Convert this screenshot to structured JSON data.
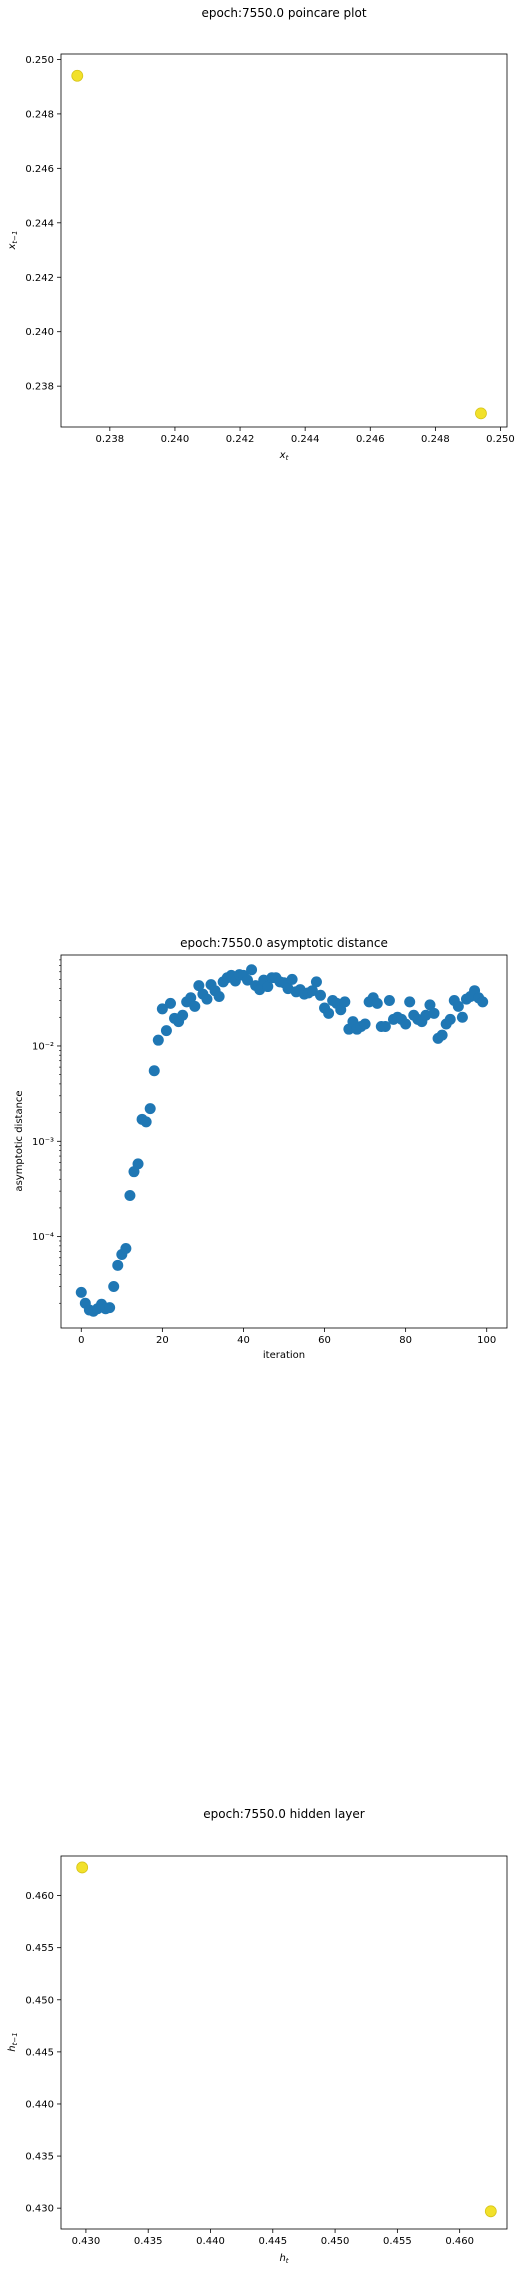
{
  "chart_data": [
    {
      "type": "scatter",
      "title": "epoch:7550.0 poincare plot",
      "xlabel": "x_t",
      "ylabel": "x_{t-1}",
      "xlim": [
        0.2365,
        0.2502
      ],
      "ylim": [
        0.2365,
        0.2502
      ],
      "yscale": "linear",
      "xticks": [
        0.238,
        0.24,
        0.242,
        0.244,
        0.246,
        0.248,
        0.25
      ],
      "xtick_labels": [
        "0.238",
        "0.240",
        "0.242",
        "0.244",
        "0.246",
        "0.248",
        "0.250"
      ],
      "yticks": [
        0.238,
        0.24,
        0.242,
        0.244,
        0.246,
        0.248,
        0.25
      ],
      "ytick_labels": [
        "0.238",
        "0.240",
        "0.242",
        "0.244",
        "0.246",
        "0.248",
        "0.250"
      ],
      "color": "#f2e12a",
      "points": [
        {
          "x": 0.237,
          "y": 0.2494
        },
        {
          "x": 0.2494,
          "y": 0.237
        }
      ]
    },
    {
      "type": "scatter",
      "title": "epoch:7550.0 asymptotic distance",
      "xlabel": "iteration",
      "ylabel": "asymptotic distance",
      "xlim": [
        -5,
        105
      ],
      "ylim": [
        1.1e-05,
        0.09
      ],
      "yscale": "log",
      "xticks": [
        0,
        20,
        40,
        60,
        80,
        100
      ],
      "xtick_labels": [
        "0",
        "20",
        "40",
        "60",
        "80",
        "100"
      ],
      "yticks": [
        0.0001,
        0.001,
        0.01
      ],
      "ytick_labels": [
        "10⁻⁴",
        "10⁻³",
        "10⁻²"
      ],
      "color": "#1f77b4",
      "x": [
        0,
        1,
        2,
        3,
        4,
        5,
        6,
        7,
        8,
        9,
        10,
        11,
        12,
        13,
        14,
        15,
        16,
        17,
        18,
        19,
        20,
        21,
        22,
        23,
        24,
        25,
        26,
        27,
        28,
        29,
        30,
        31,
        32,
        33,
        34,
        35,
        36,
        37,
        38,
        39,
        40,
        41,
        42,
        43,
        44,
        45,
        46,
        47,
        48,
        49,
        50,
        51,
        52,
        53,
        54,
        55,
        56,
        57,
        58,
        59,
        60,
        61,
        62,
        63,
        64,
        65,
        66,
        67,
        68,
        69,
        70,
        71,
        72,
        73,
        74,
        75,
        76,
        77,
        78,
        79,
        80,
        81,
        82,
        83,
        84,
        85,
        86,
        87,
        88,
        89,
        90,
        91,
        92,
        93,
        94,
        95,
        96,
        97,
        98,
        99
      ],
      "y": [
        2.6e-05,
        2e-05,
        1.7e-05,
        1.65e-05,
        1.75e-05,
        1.95e-05,
        1.75e-05,
        1.8e-05,
        3e-05,
        5e-05,
        6.5e-05,
        7.5e-05,
        0.00027,
        0.00048,
        0.00058,
        0.0017,
        0.0016,
        0.0022,
        0.0055,
        0.0115,
        0.0245,
        0.0145,
        0.028,
        0.0195,
        0.018,
        0.021,
        0.029,
        0.032,
        0.026,
        0.043,
        0.035,
        0.031,
        0.044,
        0.038,
        0.033,
        0.047,
        0.052,
        0.055,
        0.048,
        0.056,
        0.055,
        0.049,
        0.063,
        0.043,
        0.039,
        0.049,
        0.042,
        0.052,
        0.052,
        0.047,
        0.046,
        0.04,
        0.05,
        0.037,
        0.039,
        0.035,
        0.036,
        0.038,
        0.047,
        0.034,
        0.025,
        0.022,
        0.03,
        0.028,
        0.024,
        0.029,
        0.015,
        0.018,
        0.015,
        0.016,
        0.017,
        0.029,
        0.032,
        0.028,
        0.016,
        0.016,
        0.03,
        0.019,
        0.02,
        0.019,
        0.017,
        0.029,
        0.021,
        0.019,
        0.018,
        0.021,
        0.027,
        0.022,
        0.012,
        0.013,
        0.017,
        0.019,
        0.03,
        0.026,
        0.02,
        0.031,
        0.033,
        0.038,
        0.032,
        0.029
      ]
    },
    {
      "type": "scatter",
      "title": "epoch:7550.0 hidden layer",
      "xlabel": "h_t",
      "ylabel": "h_{t-1}",
      "xlim": [
        0.428,
        0.4638
      ],
      "ylim": [
        0.428,
        0.4638
      ],
      "yscale": "linear",
      "xticks": [
        0.43,
        0.435,
        0.44,
        0.445,
        0.45,
        0.455,
        0.46
      ],
      "xtick_labels": [
        "0.430",
        "0.435",
        "0.440",
        "0.445",
        "0.450",
        "0.455",
        "0.460"
      ],
      "yticks": [
        0.43,
        0.435,
        0.44,
        0.445,
        0.45,
        0.455,
        0.46
      ],
      "ytick_labels": [
        "0.430",
        "0.435",
        "0.440",
        "0.445",
        "0.450",
        "0.455",
        "0.460"
      ],
      "color": "#f2e12a",
      "points": [
        {
          "x": 0.4297,
          "y": 0.4627
        },
        {
          "x": 0.4625,
          "y": 0.4297
        }
      ]
    }
  ]
}
